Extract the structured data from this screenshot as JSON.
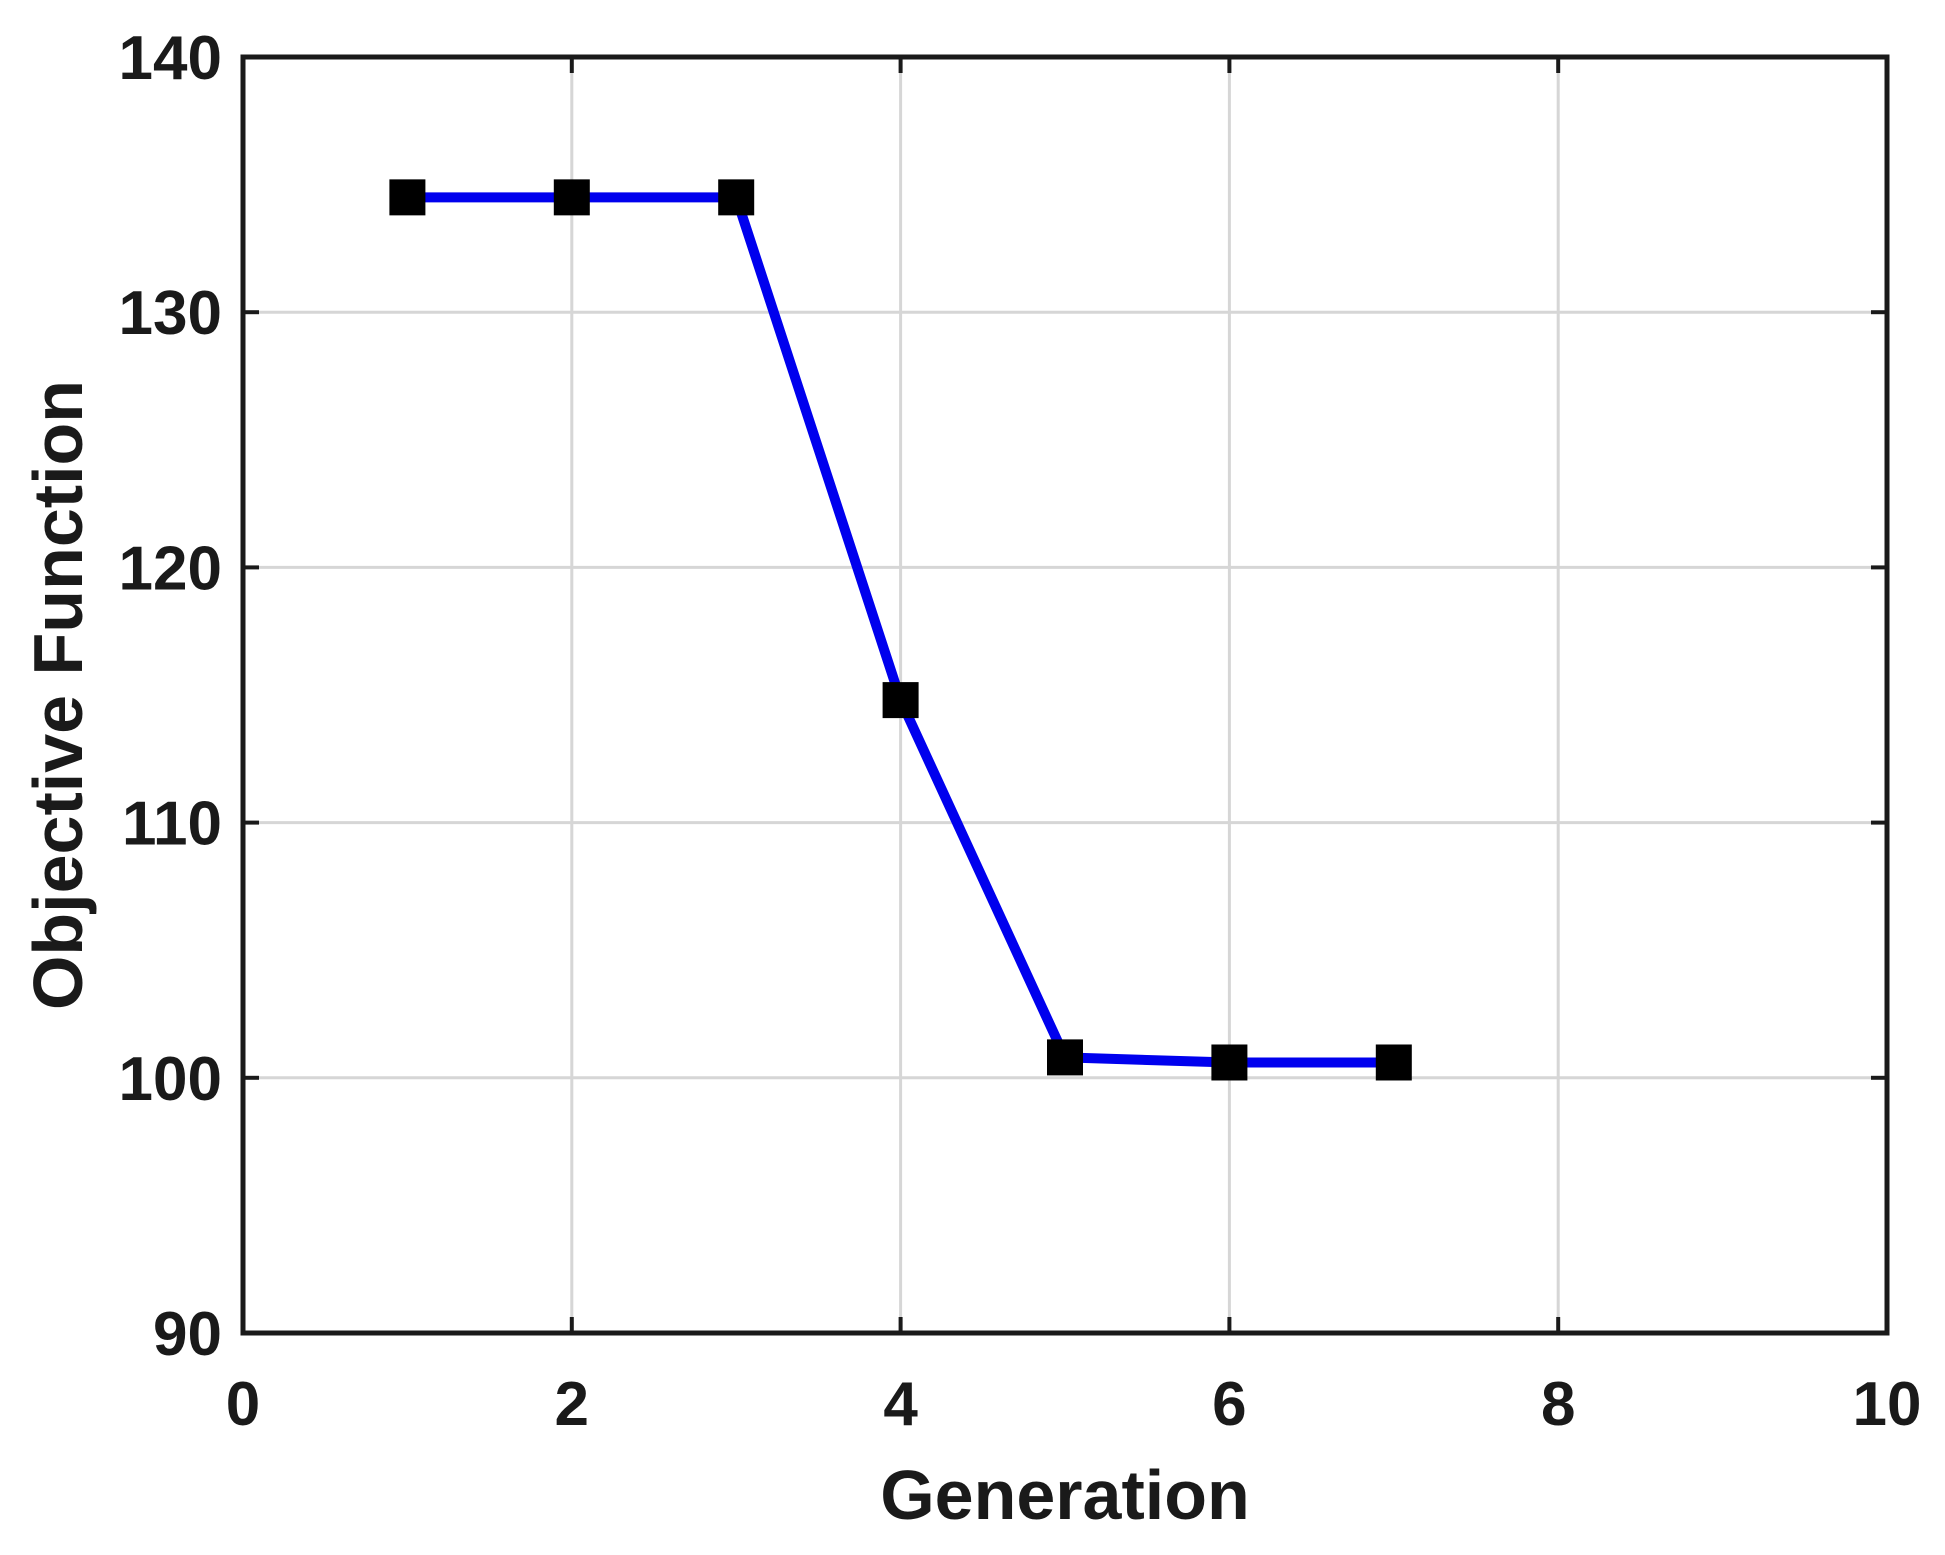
{
  "chart_data": {
    "type": "line",
    "x": [
      1,
      2,
      3,
      4,
      5,
      6,
      7
    ],
    "y": [
      134.5,
      134.5,
      134.5,
      114.8,
      100.8,
      100.6,
      100.6
    ],
    "title": "",
    "xlabel": "Generation",
    "ylabel": "Objective Function",
    "xlim": [
      0,
      10
    ],
    "ylim": [
      90,
      140
    ],
    "xticks": [
      0,
      2,
      4,
      6,
      8,
      10
    ],
    "yticks": [
      90,
      100,
      110,
      120,
      130,
      140
    ],
    "grid": true,
    "legend": "none",
    "line_color": "#0000ee",
    "marker": "square",
    "marker_color": "#000000",
    "axis_color": "#1a1a1a",
    "grid_color": "#d6d6d6",
    "background": "#ffffff"
  }
}
